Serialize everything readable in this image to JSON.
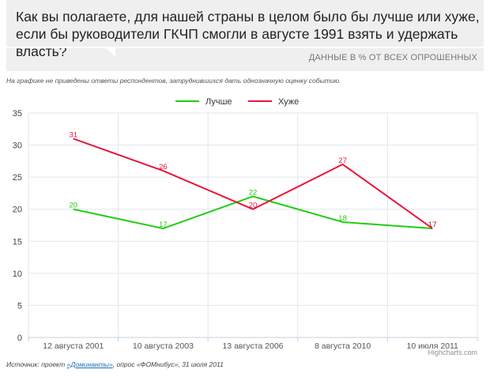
{
  "header": {
    "question": "Как вы полагаете, для нашей страны в целом было бы лучше или хуже, если бы руководители ГКЧП смогли в августе 1991 взять и удержать власть?",
    "subtitle": "ДАННЫЕ В % ОТ ВСЕХ ОПРОШЕННЫХ"
  },
  "note": "На графике не приведены ответы респондентов, затруднившихся дать однозначную оценку событию.",
  "source": {
    "prefix": "Источник: проект ",
    "link": "«Доминанты»",
    "suffix": ", опрос «ФОМнибус», 31 июля 2011"
  },
  "credits": "Highcharts.com",
  "colors": {
    "better": "#22cc11",
    "worse": "#e8143c",
    "grid": "#dfe7ef",
    "axis": "#c0d0e0"
  },
  "chart_data": {
    "type": "line",
    "categories": [
      "12 августа 2001",
      "10 августа 2003",
      "13 августа 2006",
      "8 августа 2010",
      "10 июля 2011"
    ],
    "series": [
      {
        "name": "Лучше",
        "values": [
          20,
          17,
          22,
          18,
          17
        ],
        "color": "#22cc11"
      },
      {
        "name": "Хуже",
        "values": [
          31,
          26,
          20,
          27,
          17
        ],
        "color": "#e8143c"
      }
    ],
    "ylim": [
      0,
      35
    ],
    "yticks": [
      0,
      5,
      10,
      15,
      20,
      25,
      30,
      35
    ],
    "grid": true,
    "legend": "top-center",
    "data_labels": true
  }
}
